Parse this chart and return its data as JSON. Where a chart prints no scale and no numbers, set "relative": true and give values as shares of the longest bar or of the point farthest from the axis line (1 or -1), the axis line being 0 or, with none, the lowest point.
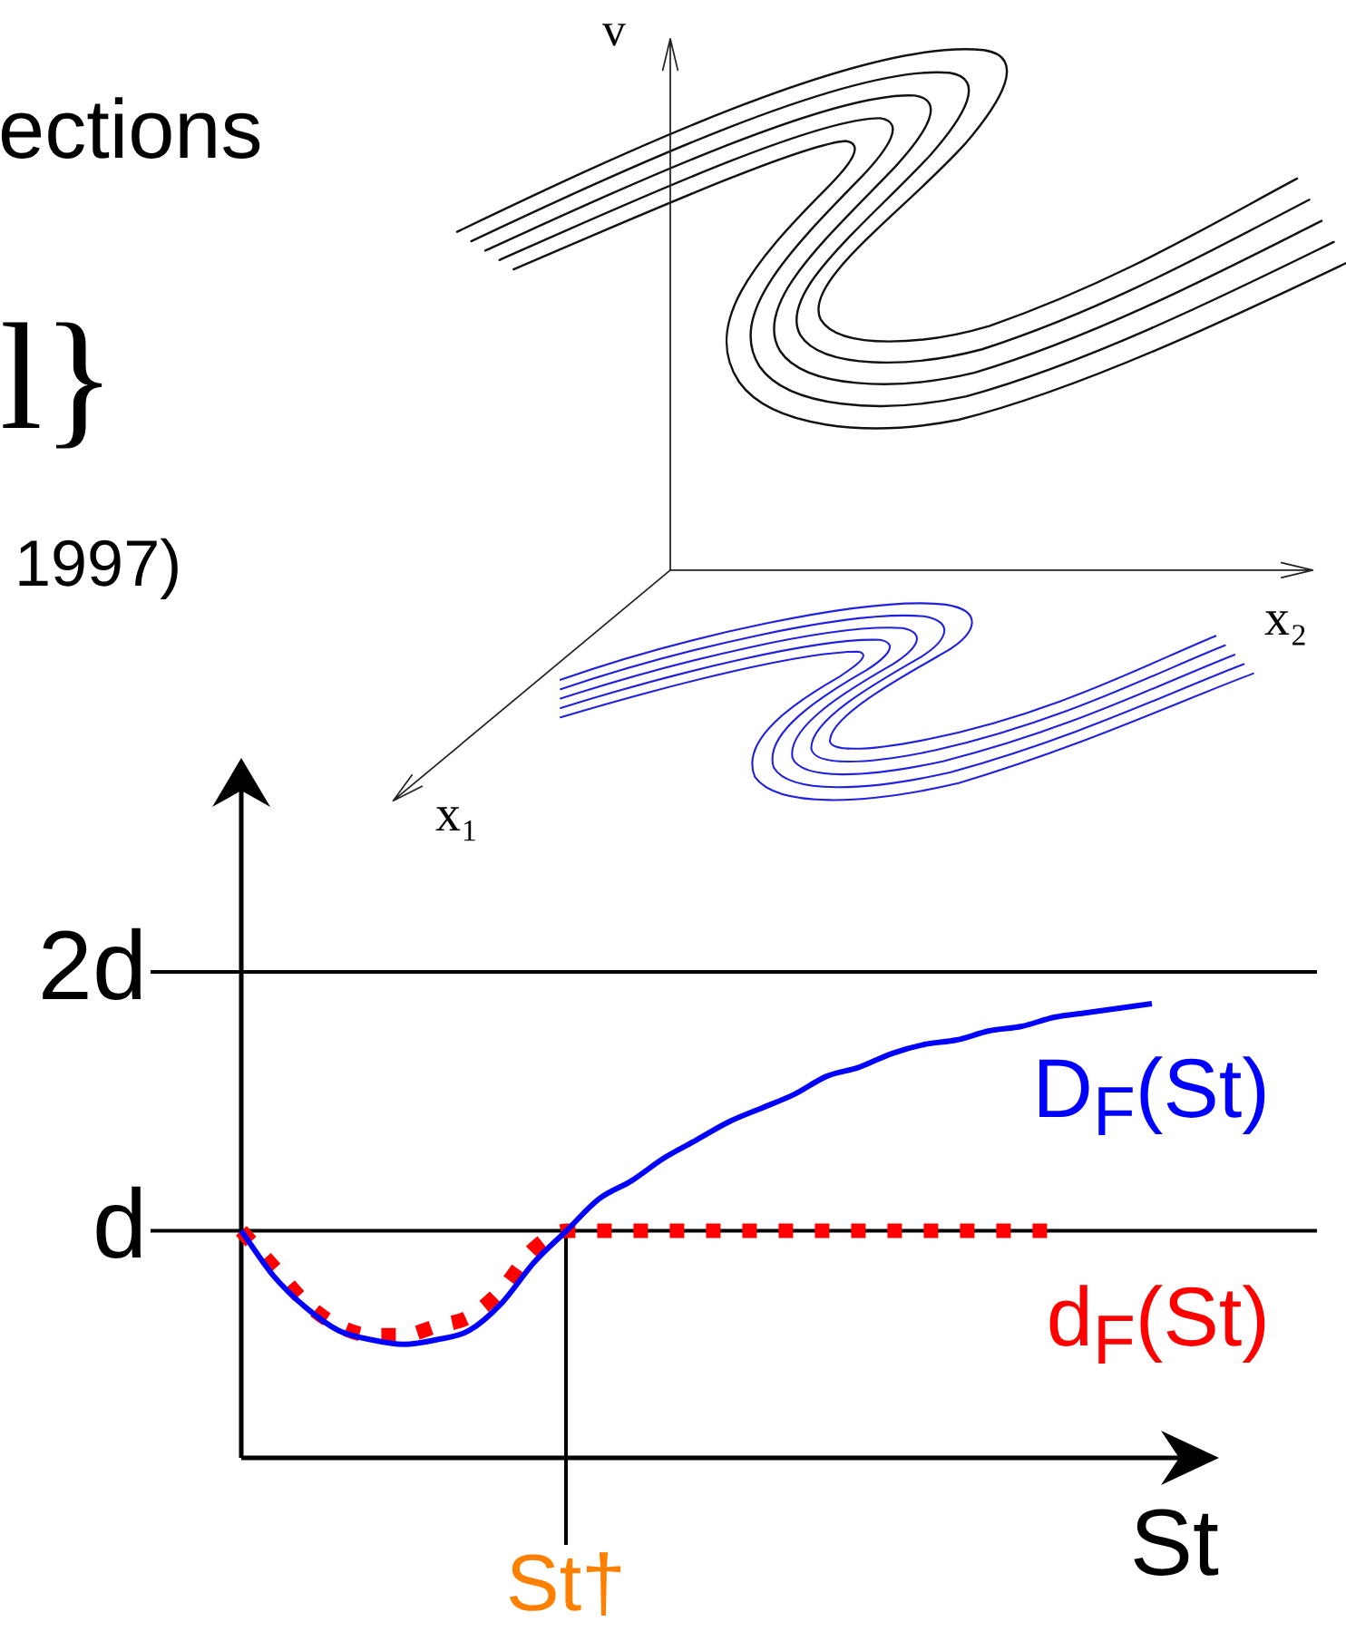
{
  "chart_data": {
    "type": "line",
    "relative": true,
    "annotations": [
      "ections",
      "l}",
      "1997)",
      "v",
      "x₁",
      "x₂",
      {
        "text": "St†",
        "y": 0.5
      }
    ],
    "xlabel": "St",
    "categories": [
      null,
      null,
      null,
      null,
      null,
      null,
      null,
      null,
      null,
      null,
      null,
      null,
      null,
      null,
      null,
      null,
      null,
      null,
      null,
      null,
      null,
      null,
      null,
      null,
      null,
      null,
      null,
      null,
      null
    ],
    "ref_lines": [
      {
        "axis": "y",
        "value": 0.5,
        "label": "d"
      },
      {
        "axis": "y",
        "value": 1.07,
        "label": "2d"
      }
    ],
    "series": [
      {
        "name": "D$_{F}$(St)",
        "color": "#0000ff",
        "values": [
          0.5,
          0.4,
          0.33,
          0.28,
          0.26,
          0.25,
          0.26,
          0.28,
          0.34,
          0.43,
          0.5,
          0.57,
          0.61,
          0.66,
          0.7,
          0.74,
          0.77,
          0.8,
          0.84,
          0.86,
          0.89,
          0.91,
          0.92,
          0.94,
          0.95,
          0.97,
          0.98,
          0.99,
          1.0
        ]
      },
      {
        "name": "d$_{F}$(St)",
        "color": "#ff0000",
        "line_style": "dotted",
        "values": [
          0.5,
          0.42,
          0.34,
          0.29,
          0.27,
          0.27,
          0.29,
          0.31,
          0.37,
          0.46,
          0.5,
          0.5,
          0.5,
          0.5,
          0.5,
          0.5,
          0.5,
          0.5,
          0.5,
          0.5,
          0.5,
          0.5,
          0.5,
          0.5,
          0.5,
          0.5,
          null,
          null,
          null
        ]
      }
    ]
  }
}
